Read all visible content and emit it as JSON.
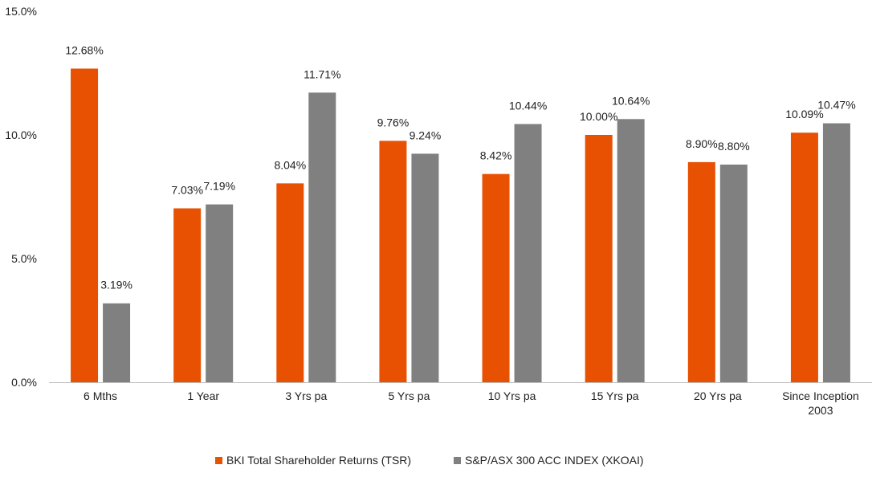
{
  "chart_data": {
    "type": "bar",
    "title": "",
    "xlabel": "",
    "ylabel": "",
    "ylim": [
      0,
      15
    ],
    "yticks": [
      {
        "value": 0,
        "label": "0.0%"
      },
      {
        "value": 5,
        "label": "5.0%"
      },
      {
        "value": 10,
        "label": "10.0%"
      },
      {
        "value": 15,
        "label": "15.0%"
      }
    ],
    "categories": [
      [
        "6 Mths"
      ],
      [
        "1 Year"
      ],
      [
        "3 Yrs pa"
      ],
      [
        "5 Yrs pa"
      ],
      [
        "10 Yrs pa"
      ],
      [
        "15 Yrs pa"
      ],
      [
        "20 Yrs pa"
      ],
      [
        "Since Inception",
        "2003"
      ]
    ],
    "series": [
      {
        "name": "BKI Total Shareholder Returns (TSR)",
        "color": "#E85002",
        "values": [
          12.68,
          7.03,
          8.04,
          9.76,
          8.42,
          10.0,
          8.9,
          10.09
        ],
        "labels": [
          "12.68%",
          "7.03%",
          "8.04%",
          "9.76%",
          "8.42%",
          "10.00%",
          "8.90%",
          "10.09%"
        ]
      },
      {
        "name": "S&P/ASX 300 ACC INDEX (XKOAI)",
        "color": "#808080",
        "values": [
          3.19,
          7.19,
          11.71,
          9.24,
          10.44,
          10.64,
          8.8,
          10.47
        ],
        "labels": [
          "3.19%",
          "7.19%",
          "11.71%",
          "9.24%",
          "10.44%",
          "10.64%",
          "8.80%",
          "10.47%"
        ]
      }
    ],
    "grid": false,
    "legend_position": "bottom"
  }
}
